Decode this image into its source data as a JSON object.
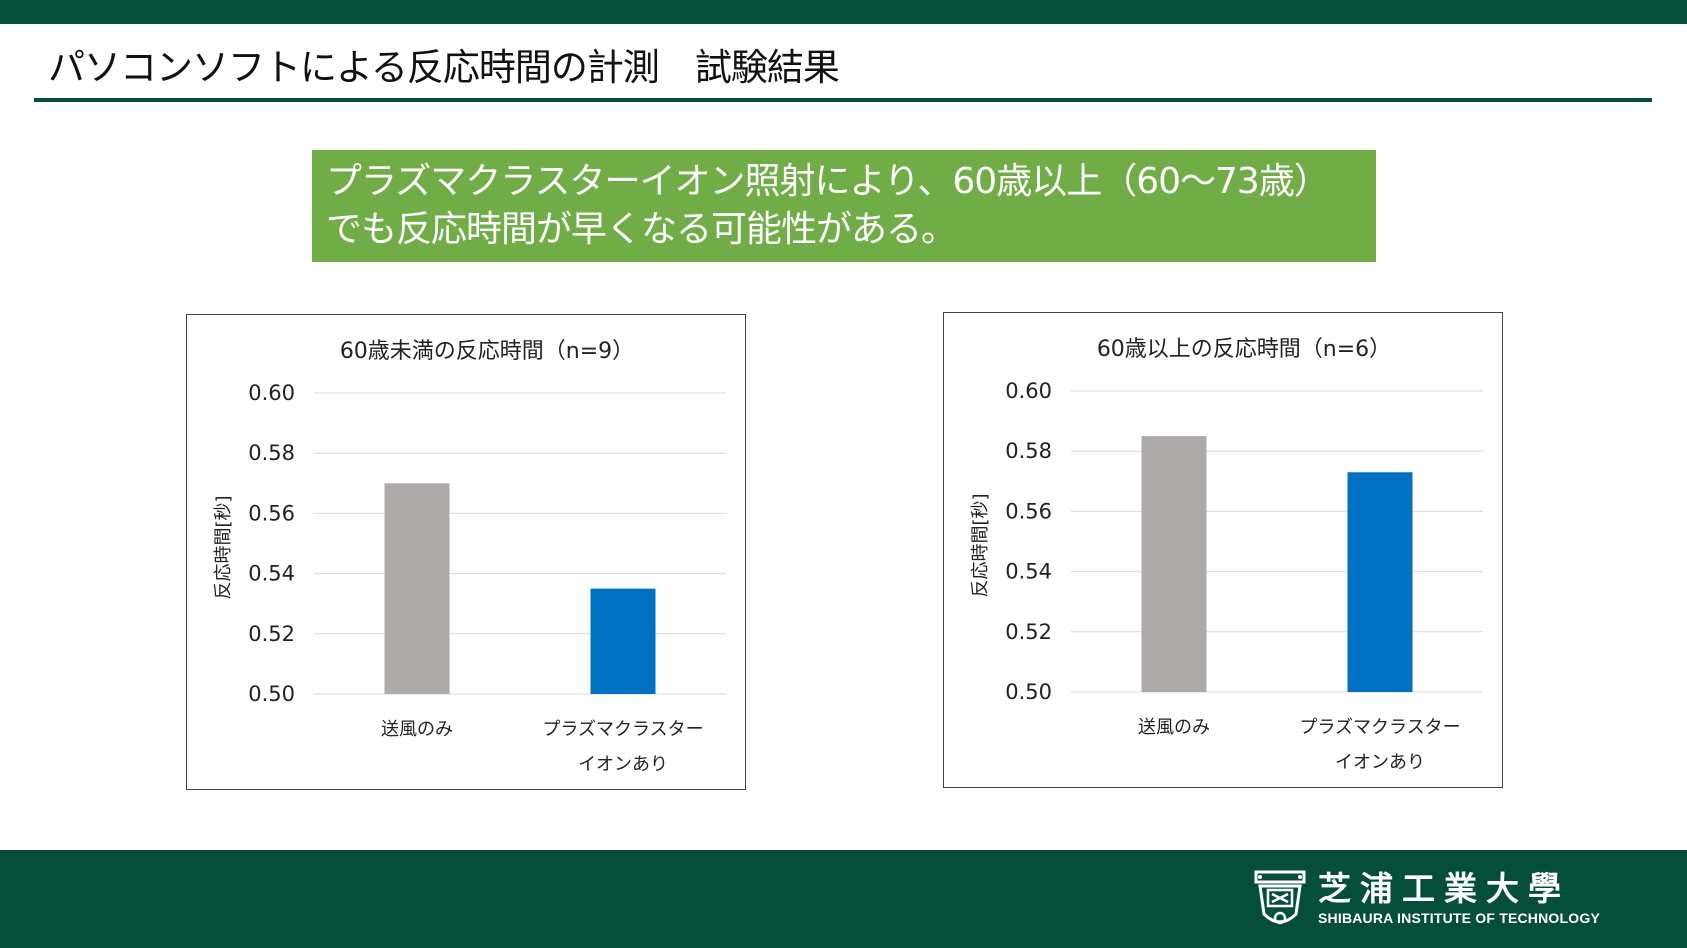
{
  "slide": {
    "title": "パソコンソフトによる反応時間の計測　試験結果",
    "callout": {
      "line1": "プラズマクラスターイオン照射により、60歳以上（60～73歳）",
      "line2": "でも反応時間が早くなる可能性がある。"
    }
  },
  "colors": {
    "brand_green": "#054f3a",
    "callout_green": "#70ad47",
    "bar_gray": "#aeaaaa",
    "bar_blue": "#0070c0"
  },
  "logo": {
    "name_jp": "芝浦工業大學",
    "name_en": "SHIBAURA INSTITUTE OF TECHNOLOGY",
    "emblem": "shibaura-emblem-icon"
  },
  "chart_data": [
    {
      "type": "bar",
      "title": "60歳未満の反応時間（n=9）",
      "ylabel": "反応時間[秒]",
      "ylim": [
        0.5,
        0.6
      ],
      "yticks": [
        "0.60",
        "0.58",
        "0.56",
        "0.54",
        "0.52",
        "0.50"
      ],
      "categories": [
        [
          "送風のみ"
        ],
        [
          "プラズマクラスター",
          "イオンあり"
        ]
      ],
      "values": [
        0.57,
        0.535
      ],
      "colors": [
        "#aeaaaa",
        "#0070c0"
      ],
      "grid": true
    },
    {
      "type": "bar",
      "title": "60歳以上の反応時間（n=6）",
      "ylabel": "反応時間[秒]",
      "ylim": [
        0.5,
        0.6
      ],
      "yticks": [
        "0.60",
        "0.58",
        "0.56",
        "0.54",
        "0.52",
        "0.50"
      ],
      "categories": [
        [
          "送風のみ"
        ],
        [
          "プラズマクラスター",
          "イオンあり"
        ]
      ],
      "values": [
        0.585,
        0.573
      ],
      "colors": [
        "#aeaaaa",
        "#0070c0"
      ],
      "grid": true
    }
  ]
}
